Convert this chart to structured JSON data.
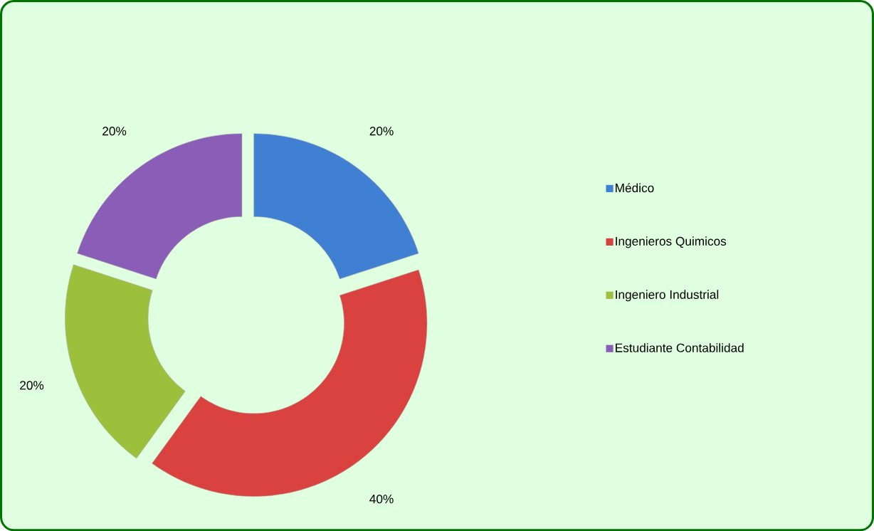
{
  "chart_data": {
    "type": "donut",
    "categories": [
      "Médico",
      "Ingenieros Quimicos",
      "Ingeniero Industrial",
      "Estudiante Contabilidad"
    ],
    "values": [
      20,
      40,
      20,
      20
    ],
    "colors": [
      "#3f80d2",
      "#d9423f",
      "#9cc03c",
      "#8a5db6"
    ],
    "value_labels": [
      "20%",
      "40%",
      "20%",
      "20%"
    ],
    "legend": "right"
  }
}
